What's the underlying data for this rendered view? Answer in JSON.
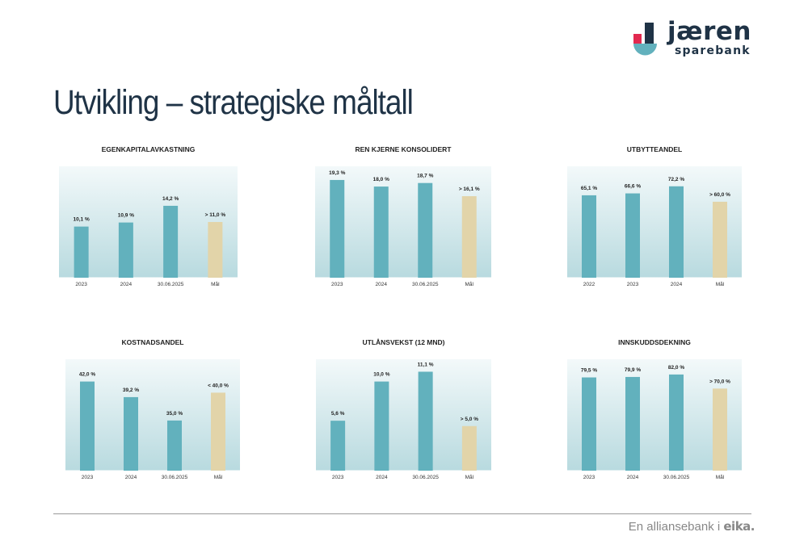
{
  "logo": {
    "name": "jæren",
    "subtitle": "sparebank"
  },
  "title": "Utvikling – strategiske måltall",
  "footer": {
    "text": "En alliansebank i",
    "brand": "eika."
  },
  "colors": {
    "actual": "#62b1bd",
    "target": "#e2d4a9",
    "text": "#1f3346",
    "bg_top": "#f3f9fa",
    "bg_bottom": "#b8dadf"
  },
  "chart_data": [
    {
      "type": "bar",
      "title": "EGENKAPITALAVKASTNING",
      "categories": [
        "2023",
        "2024",
        "30.06.2025",
        "Mål"
      ],
      "values": [
        10.1,
        10.9,
        14.2,
        11.0
      ],
      "labels": [
        "10,1 %",
        "10,9 %",
        "14,2 %",
        "> 11,0 %"
      ],
      "ylim": [
        0,
        22
      ]
    },
    {
      "type": "bar",
      "title": "REN KJERNE KONSOLIDERT",
      "categories": [
        "2023",
        "2024",
        "30.06.2025",
        "Mål"
      ],
      "values": [
        19.3,
        18.0,
        18.7,
        16.1
      ],
      "labels": [
        "19,3 %",
        "18,0 %",
        "18,7 %",
        "> 16,1 %"
      ],
      "ylim": [
        0,
        22
      ]
    },
    {
      "type": "bar",
      "title": "UTBYTTEANDEL",
      "categories": [
        "2022",
        "2023",
        "2024",
        "Mål"
      ],
      "values": [
        65.1,
        66.6,
        72.2,
        60.0
      ],
      "labels": [
        "65,1 %",
        "66,6 %",
        "72,2 %",
        "> 60,0 %"
      ],
      "ylim": [
        0,
        88
      ]
    },
    {
      "type": "bar",
      "title": "KOSTNADSANDEL",
      "categories": [
        "2023",
        "2024",
        "30.06.2025",
        "Mål"
      ],
      "values": [
        42.0,
        39.2,
        35.0,
        40.0
      ],
      "labels": [
        "42,0 %",
        "39,2 %",
        "35,0 %",
        "< 40,0 %"
      ],
      "ylim": [
        26,
        46
      ]
    },
    {
      "type": "bar",
      "title": "UTLÅNSVEKST (12 MND)",
      "categories": [
        "2023",
        "2024",
        "30.06.2025",
        "Mål"
      ],
      "values": [
        5.6,
        10.0,
        11.1,
        5.0
      ],
      "labels": [
        "5,6 %",
        "10,0 %",
        "11,1 %",
        "> 5,0 %"
      ],
      "ylim": [
        0,
        12.5
      ]
    },
    {
      "type": "bar",
      "title": "INNSKUDDSDEKNING",
      "categories": [
        "2023",
        "2024",
        "30.06.2025",
        "Mål"
      ],
      "values": [
        79.5,
        79.9,
        82.0,
        70.0
      ],
      "labels": [
        "79,5 %",
        "79,9 %",
        "82,0 %",
        "> 70,0 %"
      ],
      "ylim": [
        0,
        95
      ]
    }
  ]
}
